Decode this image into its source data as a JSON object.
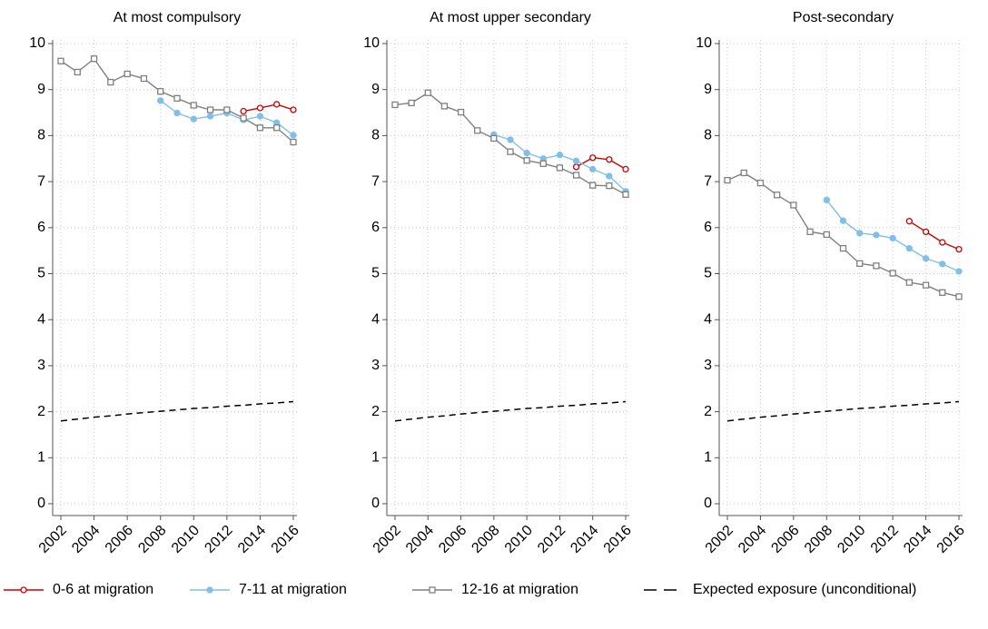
{
  "chart_data": [
    {
      "type": "line",
      "title": "At most compulsory",
      "x": [
        2002,
        2003,
        2004,
        2005,
        2006,
        2007,
        2008,
        2009,
        2010,
        2011,
        2012,
        2013,
        2014,
        2015,
        2016
      ],
      "xlim": [
        2002,
        2016
      ],
      "xticks": [
        2002,
        2004,
        2006,
        2008,
        2010,
        2012,
        2014,
        2016
      ],
      "ylim": [
        0,
        10
      ],
      "yticks": [
        0,
        1,
        2,
        3,
        4,
        5,
        6,
        7,
        8,
        9,
        10
      ],
      "grid": true,
      "series": [
        {
          "name": "0-6 at migration",
          "color": "#cc0000",
          "marker": "circle-open",
          "values": [
            null,
            null,
            null,
            null,
            null,
            null,
            null,
            null,
            null,
            null,
            null,
            8.53,
            8.6,
            8.68,
            8.56
          ]
        },
        {
          "name": "7-11 at migration",
          "color": "#7fbfe8",
          "marker": "circle",
          "values": [
            null,
            null,
            null,
            null,
            null,
            null,
            8.76,
            8.49,
            8.36,
            8.42,
            8.49,
            8.34,
            8.42,
            8.28,
            8.01
          ]
        },
        {
          "name": "12-16 at migration",
          "color": "#808080",
          "marker": "square-open",
          "values": [
            9.62,
            9.38,
            9.67,
            9.16,
            9.34,
            9.24,
            8.96,
            8.81,
            8.66,
            8.56,
            8.56,
            8.38,
            8.17,
            8.17,
            7.86
          ]
        },
        {
          "name": "Expected exposure (unconditional)",
          "color": "#000000",
          "dash": true,
          "values": [
            1.8,
            1.84,
            1.88,
            1.91,
            1.95,
            1.98,
            2.01,
            2.04,
            2.07,
            2.09,
            2.12,
            2.14,
            2.17,
            2.19,
            2.22
          ]
        }
      ]
    },
    {
      "type": "line",
      "title": "At most upper secondary",
      "x": [
        2002,
        2003,
        2004,
        2005,
        2006,
        2007,
        2008,
        2009,
        2010,
        2011,
        2012,
        2013,
        2014,
        2015,
        2016
      ],
      "xlim": [
        2002,
        2016
      ],
      "xticks": [
        2002,
        2004,
        2006,
        2008,
        2010,
        2012,
        2014,
        2016
      ],
      "ylim": [
        0,
        10
      ],
      "yticks": [
        0,
        1,
        2,
        3,
        4,
        5,
        6,
        7,
        8,
        9,
        10
      ],
      "grid": true,
      "series": [
        {
          "name": "0-6 at migration",
          "color": "#cc0000",
          "marker": "circle-open",
          "values": [
            null,
            null,
            null,
            null,
            null,
            null,
            null,
            null,
            null,
            null,
            null,
            7.32,
            7.52,
            7.48,
            7.27
          ]
        },
        {
          "name": "7-11 at migration",
          "color": "#7fbfe8",
          "marker": "circle",
          "values": [
            null,
            null,
            null,
            null,
            null,
            null,
            8.02,
            7.91,
            7.62,
            7.5,
            7.58,
            7.45,
            7.27,
            7.12,
            6.79
          ]
        },
        {
          "name": "12-16 at migration",
          "color": "#808080",
          "marker": "square-open",
          "values": [
            8.67,
            8.71,
            8.93,
            8.64,
            8.51,
            8.11,
            7.94,
            7.65,
            7.46,
            7.39,
            7.3,
            7.14,
            6.92,
            6.91,
            6.72
          ]
        },
        {
          "name": "Expected exposure (unconditional)",
          "color": "#000000",
          "dash": true,
          "values": [
            1.8,
            1.84,
            1.88,
            1.91,
            1.95,
            1.98,
            2.01,
            2.04,
            2.07,
            2.09,
            2.12,
            2.14,
            2.17,
            2.19,
            2.22
          ]
        }
      ]
    },
    {
      "type": "line",
      "title": "Post-secondary",
      "x": [
        2002,
        2003,
        2004,
        2005,
        2006,
        2007,
        2008,
        2009,
        2010,
        2011,
        2012,
        2013,
        2014,
        2015,
        2016
      ],
      "xlim": [
        2002,
        2016
      ],
      "xticks": [
        2002,
        2004,
        2006,
        2008,
        2010,
        2012,
        2014,
        2016
      ],
      "ylim": [
        0,
        10
      ],
      "yticks": [
        0,
        1,
        2,
        3,
        4,
        5,
        6,
        7,
        8,
        9,
        10
      ],
      "grid": true,
      "series": [
        {
          "name": "0-6 at migration",
          "color": "#cc0000",
          "marker": "circle-open",
          "values": [
            null,
            null,
            null,
            null,
            null,
            null,
            null,
            null,
            null,
            null,
            null,
            6.14,
            5.91,
            5.68,
            5.53
          ]
        },
        {
          "name": "7-11 at migration",
          "color": "#7fbfe8",
          "marker": "circle",
          "values": [
            null,
            null,
            null,
            null,
            null,
            null,
            6.6,
            6.15,
            5.88,
            5.84,
            5.77,
            5.55,
            5.33,
            5.21,
            5.05
          ]
        },
        {
          "name": "12-16 at migration",
          "color": "#808080",
          "marker": "square-open",
          "values": [
            7.03,
            7.19,
            6.97,
            6.71,
            6.49,
            5.91,
            5.85,
            5.55,
            5.22,
            5.17,
            5.01,
            4.81,
            4.75,
            4.59,
            4.5
          ]
        },
        {
          "name": "Expected exposure (unconditional)",
          "color": "#000000",
          "dash": true,
          "values": [
            1.8,
            1.84,
            1.88,
            1.91,
            1.95,
            1.98,
            2.01,
            2.04,
            2.07,
            2.09,
            2.12,
            2.14,
            2.17,
            2.19,
            2.22
          ]
        }
      ]
    }
  ]
}
